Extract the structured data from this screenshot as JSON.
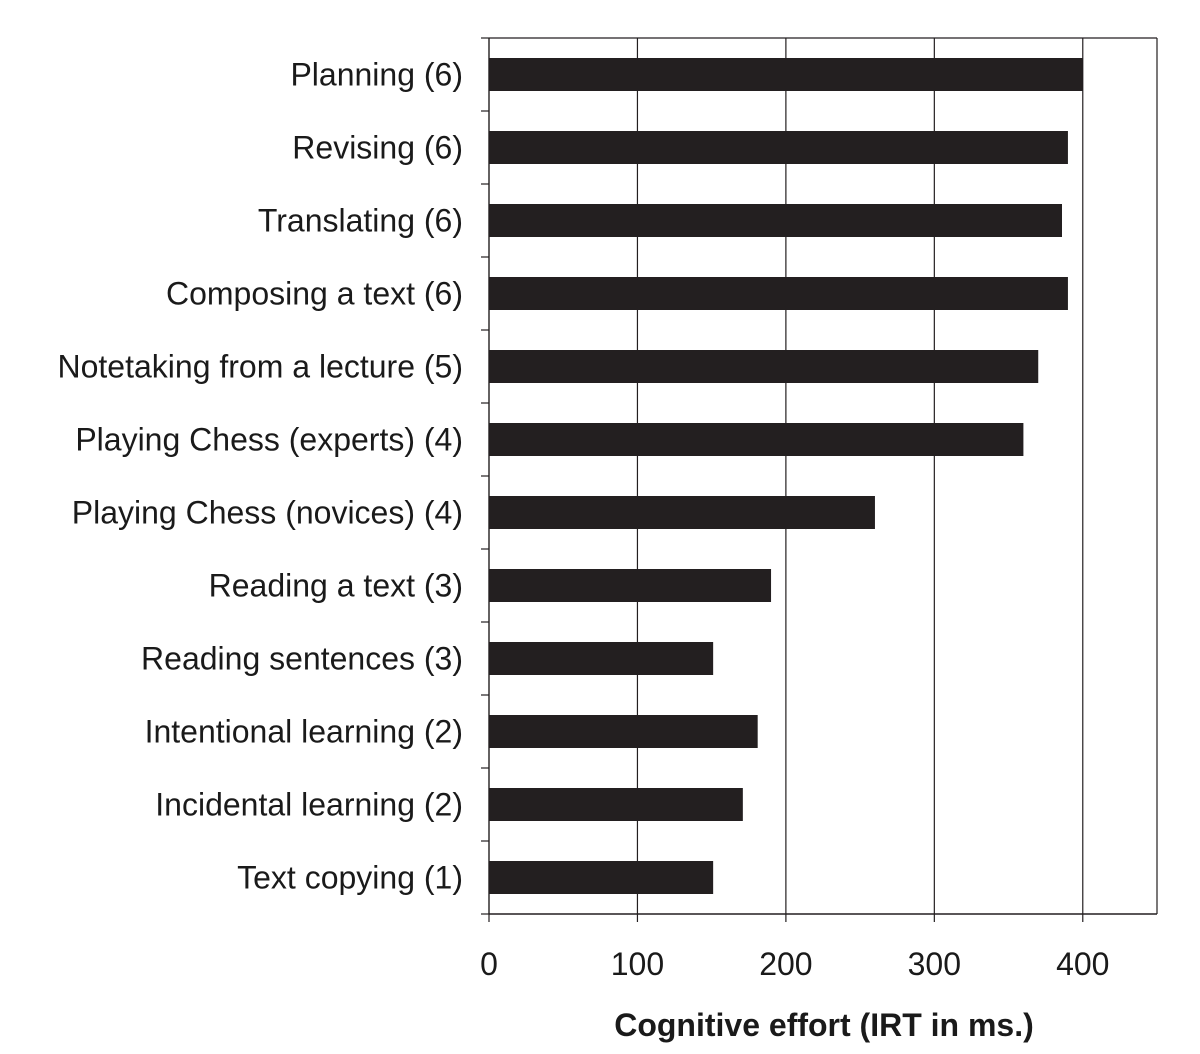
{
  "chart_data": {
    "type": "bar",
    "orientation": "horizontal",
    "categories": [
      "Planning (6)",
      "Revising (6)",
      "Translating (6)",
      "Composing a text (6)",
      "Notetaking from a lecture (5)",
      "Playing Chess (experts) (4)",
      "Playing Chess (novices) (4)",
      "Reading a text (3)",
      "Reading sentences (3)",
      "Intentional learning (2)",
      "Incidental learning (2)",
      "Text copying (1)"
    ],
    "values": [
      400,
      390,
      386,
      390,
      370,
      360,
      260,
      190,
      151,
      181,
      171,
      151
    ],
    "xlabel": "Cognitive effort (IRT in ms.)",
    "ylabel": "",
    "xlim": [
      0,
      450
    ],
    "xticks": [
      0,
      100,
      200,
      300,
      400
    ],
    "grid": "vertical",
    "bar_color": "#231f20",
    "grid_color": "#231f20"
  }
}
